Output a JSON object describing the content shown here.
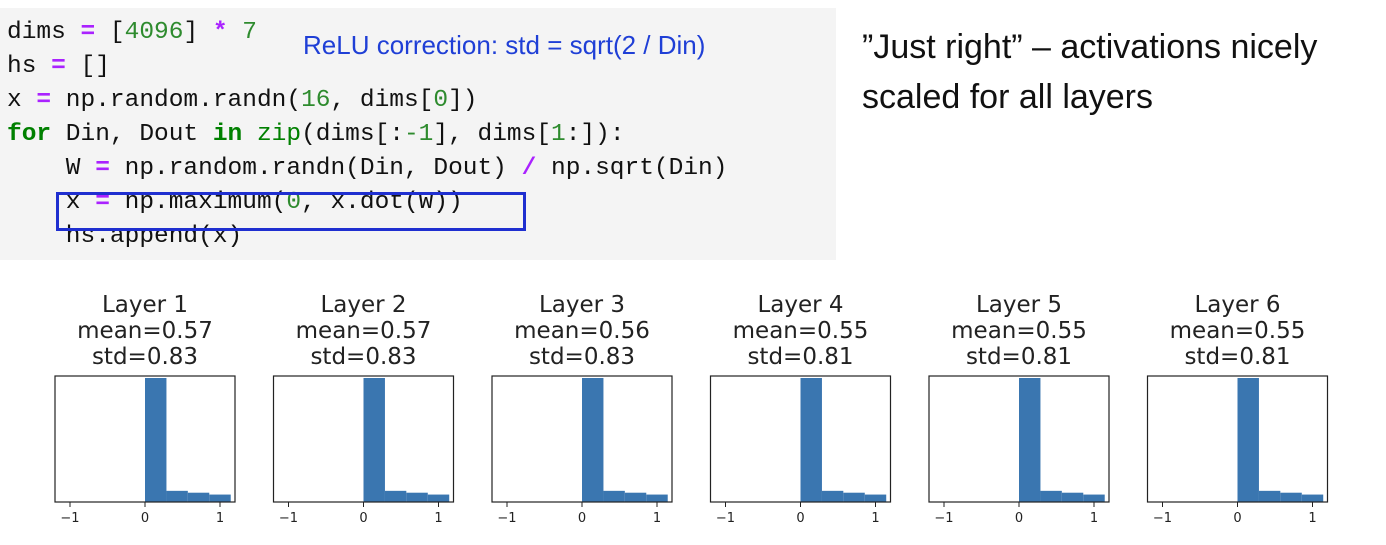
{
  "code": {
    "lines": [
      [
        {
          "t": "dims ",
          "c": ""
        },
        {
          "t": "=",
          "c": "op"
        },
        {
          "t": " [",
          "c": ""
        },
        {
          "t": "4096",
          "c": "num"
        },
        {
          "t": "] ",
          "c": ""
        },
        {
          "t": "*",
          "c": "op"
        },
        {
          "t": " ",
          "c": ""
        },
        {
          "t": "7",
          "c": "num"
        }
      ],
      [
        {
          "t": "hs ",
          "c": ""
        },
        {
          "t": "=",
          "c": "op"
        },
        {
          "t": " []",
          "c": ""
        }
      ],
      [
        {
          "t": "x ",
          "c": ""
        },
        {
          "t": "=",
          "c": "op"
        },
        {
          "t": " np.random.randn(",
          "c": ""
        },
        {
          "t": "16",
          "c": "num"
        },
        {
          "t": ", dims[",
          "c": ""
        },
        {
          "t": "0",
          "c": "num"
        },
        {
          "t": "])",
          "c": ""
        }
      ],
      [
        {
          "t": "for",
          "c": "kw"
        },
        {
          "t": " Din, Dout ",
          "c": ""
        },
        {
          "t": "in",
          "c": "kw"
        },
        {
          "t": " ",
          "c": ""
        },
        {
          "t": "zip",
          "c": "fn"
        },
        {
          "t": "(dims[:",
          "c": ""
        },
        {
          "t": "-1",
          "c": "num"
        },
        {
          "t": "], dims[",
          "c": ""
        },
        {
          "t": "1",
          "c": "num"
        },
        {
          "t": ":]):",
          "c": ""
        }
      ],
      [
        {
          "t": "    W ",
          "c": ""
        },
        {
          "t": "=",
          "c": "op"
        },
        {
          "t": " np.random.randn(Din, Dout) ",
          "c": ""
        },
        {
          "t": "/",
          "c": "op"
        },
        {
          "t": " np.sqrt(Din)",
          "c": ""
        }
      ],
      [
        {
          "t": "    x ",
          "c": ""
        },
        {
          "t": "=",
          "c": "op"
        },
        {
          "t": " np.maximum(",
          "c": ""
        },
        {
          "t": "0",
          "c": "num"
        },
        {
          "t": ", x.dot(W))",
          "c": ""
        }
      ],
      [
        {
          "t": "    hs.append(x)",
          "c": ""
        }
      ]
    ],
    "annotation": "ReLU correction: std = sqrt(2 / Din)"
  },
  "note": {
    "line1": "”Just right” – activations nicely",
    "line2": "scaled for all layers"
  },
  "colors": {
    "bar": "#3a76b0",
    "highlight": "#1f2fd0",
    "annotation": "#1f3fd6"
  },
  "chart_data": {
    "type": "bar",
    "xlim": [
      -1.2,
      1.2
    ],
    "xticks": [
      -1,
      0,
      1
    ],
    "bin_edges": [
      0,
      0.286,
      0.571,
      0.857,
      1.143
    ],
    "panels": [
      {
        "title": "Layer 1",
        "mean": "mean=0.57",
        "std": "std=0.83",
        "values": [
          1.0,
          0.09,
          0.075,
          0.06
        ]
      },
      {
        "title": "Layer 2",
        "mean": "mean=0.57",
        "std": "std=0.83",
        "values": [
          1.0,
          0.09,
          0.075,
          0.06
        ]
      },
      {
        "title": "Layer 3",
        "mean": "mean=0.56",
        "std": "std=0.83",
        "values": [
          1.0,
          0.09,
          0.075,
          0.06
        ]
      },
      {
        "title": "Layer 4",
        "mean": "mean=0.55",
        "std": "std=0.81",
        "values": [
          1.0,
          0.09,
          0.075,
          0.06
        ]
      },
      {
        "title": "Layer 5",
        "mean": "mean=0.55",
        "std": "std=0.81",
        "values": [
          1.0,
          0.09,
          0.075,
          0.06
        ]
      },
      {
        "title": "Layer 6",
        "mean": "mean=0.55",
        "std": "std=0.81",
        "values": [
          1.0,
          0.09,
          0.075,
          0.06
        ]
      }
    ]
  }
}
